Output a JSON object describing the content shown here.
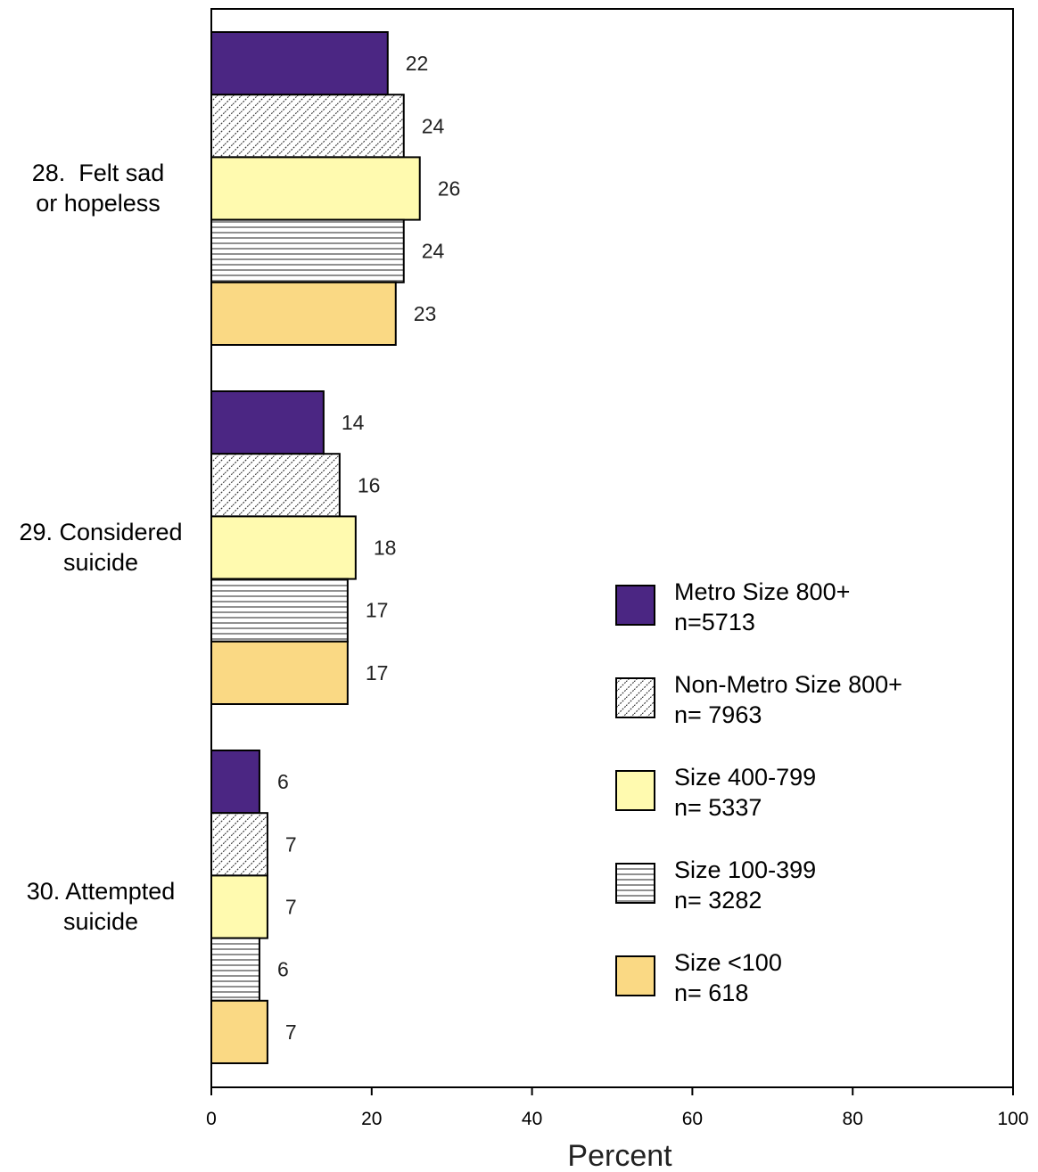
{
  "chart_data": {
    "type": "bar",
    "orientation": "horizontal",
    "categories": [
      {
        "line1": "28.  Felt sad",
        "line2": "or hopeless"
      },
      {
        "line1": "29. Considered",
        "line2": "suicide"
      },
      {
        "line1": "30. Attempted",
        "line2": "suicide"
      }
    ],
    "series": [
      {
        "name": "Metro Size 800+",
        "n": "n=5713",
        "fill": "solid",
        "color": "#4b2683",
        "values": [
          22,
          14,
          6
        ]
      },
      {
        "name": "Non-Metro Size 800+",
        "n": " n= 7963",
        "fill": "wavy",
        "color": "#ffffff",
        "values": [
          24,
          16,
          7
        ]
      },
      {
        "name": "Size 400-799",
        "n": " n= 5337",
        "fill": "solid",
        "color": "#fffaaf",
        "values": [
          26,
          18,
          7
        ]
      },
      {
        "name": "Size 100-399",
        "n": " n= 3282",
        "fill": "hlines",
        "color": "#ffffff",
        "values": [
          24,
          17,
          6
        ]
      },
      {
        "name": "Size <100",
        "n": " n= 618",
        "fill": "solid",
        "color": "#fad984",
        "values": [
          23,
          17,
          7
        ]
      }
    ],
    "xlabel": "Percent",
    "xlim": [
      0,
      100
    ],
    "xticks": [
      "0",
      "20",
      "40",
      "60",
      "80",
      "100"
    ],
    "grid": false,
    "legend_position": "right"
  }
}
